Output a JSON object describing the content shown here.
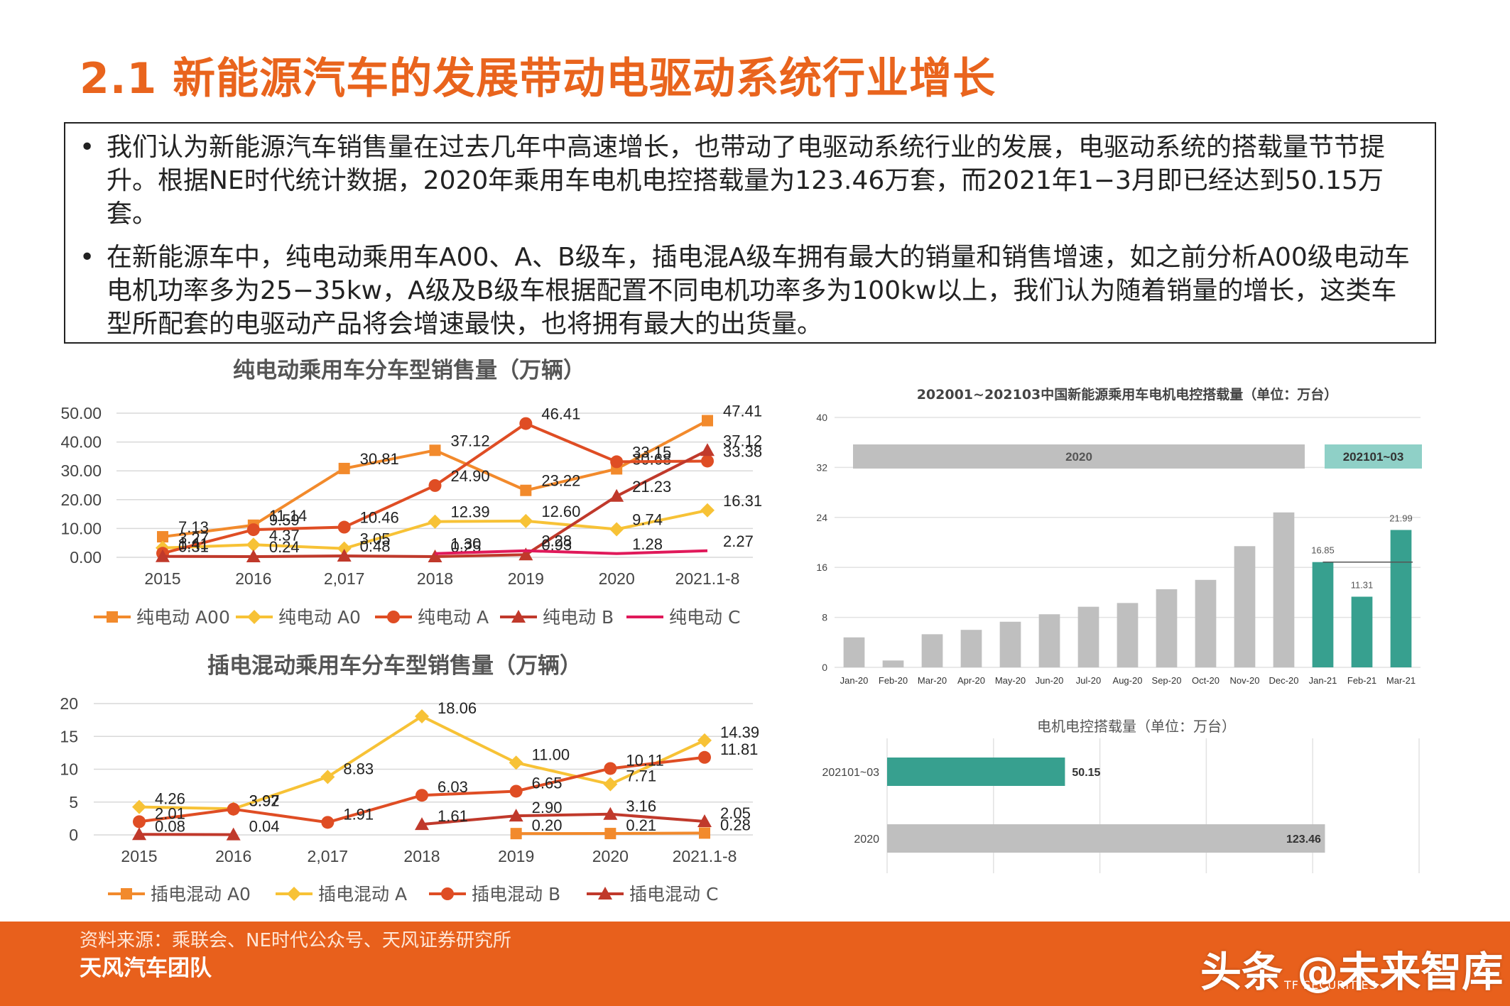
{
  "title": "2.1 新能源汽车的发展带动电驱动系统行业增长",
  "bullets": [
    "我们认为新能源汽车销售量在过去几年中高速增长，也带动了电驱动系统行业的发展，电驱动系统的搭载量节节提升。根据NE时代统计数据，2020年乘用车电机电控搭载量为123.46万套，而2021年1−3月即已经达到50.15万套。",
    "在新能源车中，纯电动乘用车A00、A、B级车，插电混A级车拥有最大的销量和销售增速，如之前分析A00级电动车电机功率多为25−35kw，A级及B级车根据配置不同电机功率多为100kw以上，我们认为随着销量的增长，这类车型所配套的电驱动产品将会增速最快，也将拥有最大的出货量。"
  ],
  "footer": {
    "source": "资料来源：乘联会、NE时代公众号、天风证券研究所",
    "team": "天风汽车团队",
    "watermark": "头条 @未来智库",
    "brand": "TF SECURITIES"
  },
  "chart_data": [
    {
      "id": "bev",
      "type": "line",
      "title": "纯电动乘用车分车型销售量（万辆）",
      "categories": [
        "2015",
        "2016",
        "2,017",
        "2018",
        "2019",
        "2020",
        "2021.1-8"
      ],
      "ylim": [
        0,
        50
      ],
      "yticks": [
        "0.00",
        "10.00",
        "20.00",
        "30.00",
        "40.00",
        "50.00"
      ],
      "legend_position": "bottom",
      "series": [
        {
          "name": "纯电动 A00",
          "color": "#f28a2c",
          "marker": "square",
          "values": [
            7.13,
            11.14,
            30.81,
            37.12,
            23.22,
            30.68,
            47.41
          ],
          "labels": [
            "7.13",
            "11.14",
            "30.81",
            "37.12",
            "23.22",
            "30.68",
            "47.41"
          ]
        },
        {
          "name": "纯电动 A0",
          "color": "#f7c236",
          "marker": "diamond",
          "values": [
            3.27,
            4.37,
            3.05,
            12.39,
            12.6,
            9.74,
            16.31
          ],
          "labels": [
            "3.27",
            "4.37",
            "3.05",
            "12.39",
            "12.60",
            "9.74",
            "16.31"
          ]
        },
        {
          "name": "纯电动 A",
          "color": "#df4d24",
          "marker": "circle",
          "values": [
            1.41,
            9.59,
            10.46,
            24.9,
            46.41,
            33.15,
            33.38
          ],
          "labels": [
            "1.41",
            "9.59",
            "10.46",
            "24.90",
            "46.41",
            "33.15",
            "33.38"
          ]
        },
        {
          "name": "纯电动 B",
          "color": "#c0392b",
          "marker": "triangle",
          "values": [
            0.31,
            0.24,
            0.48,
            0.25,
            0.93,
            21.23,
            37.12
          ],
          "labels": [
            "0.31",
            "0.24",
            "0.48",
            "0.25",
            "0.93",
            "21.23",
            "37.12"
          ]
        },
        {
          "name": "纯电动 C",
          "color": "#e0195a",
          "marker": "none",
          "values": [
            null,
            null,
            null,
            1.3,
            2.28,
            1.28,
            2.27
          ],
          "labels": [
            "",
            "",
            "",
            "1.30",
            "2.28",
            "1.28",
            "2.27"
          ]
        }
      ]
    },
    {
      "id": "phev",
      "type": "line",
      "title": "插电混动乘用车分车型销售量（万辆）",
      "categories": [
        "2015",
        "2016",
        "2,017",
        "2018",
        "2019",
        "2020",
        "2021.1-8"
      ],
      "ylim": [
        0,
        20
      ],
      "yticks": [
        "0",
        "5",
        "10",
        "15",
        "20"
      ],
      "legend_position": "bottom",
      "series": [
        {
          "name": "插电混动 A0",
          "color": "#f28a2c",
          "marker": "square",
          "values": [
            null,
            null,
            null,
            null,
            0.2,
            0.21,
            0.28
          ],
          "labels": [
            "",
            "",
            "",
            "",
            "0.20",
            "0.21",
            "0.28"
          ]
        },
        {
          "name": "插电混动 A",
          "color": "#f7c236",
          "marker": "diamond",
          "values": [
            4.26,
            3.97,
            8.83,
            18.06,
            11.0,
            7.71,
            14.39
          ],
          "labels": [
            "4.26",
            "3.97",
            "8.83",
            "18.06",
            "11.00",
            "7.71",
            "14.39"
          ]
        },
        {
          "name": "插电混动 B",
          "color": "#df4d24",
          "marker": "circle",
          "values": [
            2.01,
            3.92,
            1.91,
            6.03,
            6.65,
            10.11,
            11.81
          ],
          "labels": [
            "2.01",
            "3.92",
            "1.91",
            "6.03",
            "6.65",
            "10.11",
            "11.81"
          ]
        },
        {
          "name": "插电混动 C",
          "color": "#c0392b",
          "marker": "triangle",
          "values": [
            0.08,
            0.04,
            null,
            1.61,
            2.9,
            3.16,
            2.05
          ],
          "labels": [
            "0.08",
            "0.04",
            "",
            "1.61",
            "2.90",
            "3.16",
            "2.05"
          ]
        }
      ]
    },
    {
      "id": "monthly",
      "type": "bar",
      "title": "202001~202103中国新能源乘用车电机电控搭载量（单位：万台）",
      "categories": [
        "Jan-20",
        "Feb-20",
        "Mar-20",
        "Apr-20",
        "May-20",
        "Jun-20",
        "Jul-20",
        "Aug-20",
        "Sep-20",
        "Oct-20",
        "Nov-20",
        "Dec-20",
        "Jan-21",
        "Feb-21",
        "Mar-21"
      ],
      "values": [
        4.8,
        1.1,
        5.3,
        6.0,
        7.3,
        8.5,
        9.7,
        10.3,
        12.5,
        14.0,
        19.4,
        24.8,
        16.85,
        11.31,
        21.99
      ],
      "value_labels": [
        "",
        "",
        "",
        "",
        "",
        "",
        "",
        "",
        "",
        "",
        "",
        "",
        "16.85",
        "11.31",
        "21.99"
      ],
      "colors": [
        "#bfbfbf",
        "#bfbfbf",
        "#bfbfbf",
        "#bfbfbf",
        "#bfbfbf",
        "#bfbfbf",
        "#bfbfbf",
        "#bfbfbf",
        "#bfbfbf",
        "#bfbfbf",
        "#bfbfbf",
        "#bfbfbf",
        "#37a08f",
        "#37a08f",
        "#37a08f"
      ],
      "ylim": [
        0,
        40
      ],
      "yticks": [
        "0",
        "8",
        "16",
        "24",
        "32",
        "40"
      ],
      "groups": [
        {
          "label": "2020",
          "color": "#bfbfbf",
          "text_color": "#555555"
        },
        {
          "label": "202101~03",
          "color": "#8fd0c7",
          "text_color": "#333333"
        }
      ]
    },
    {
      "id": "totals",
      "type": "bar",
      "orientation": "horizontal",
      "title": "电机电控搭载量（单位：万台）",
      "categories": [
        "202101~03",
        "2020"
      ],
      "values": [
        50.15,
        123.46
      ],
      "value_labels": [
        "50.15",
        "123.46"
      ],
      "colors": [
        "#37a08f",
        "#bfbfbf"
      ],
      "xlim": [
        0,
        150
      ]
    }
  ]
}
